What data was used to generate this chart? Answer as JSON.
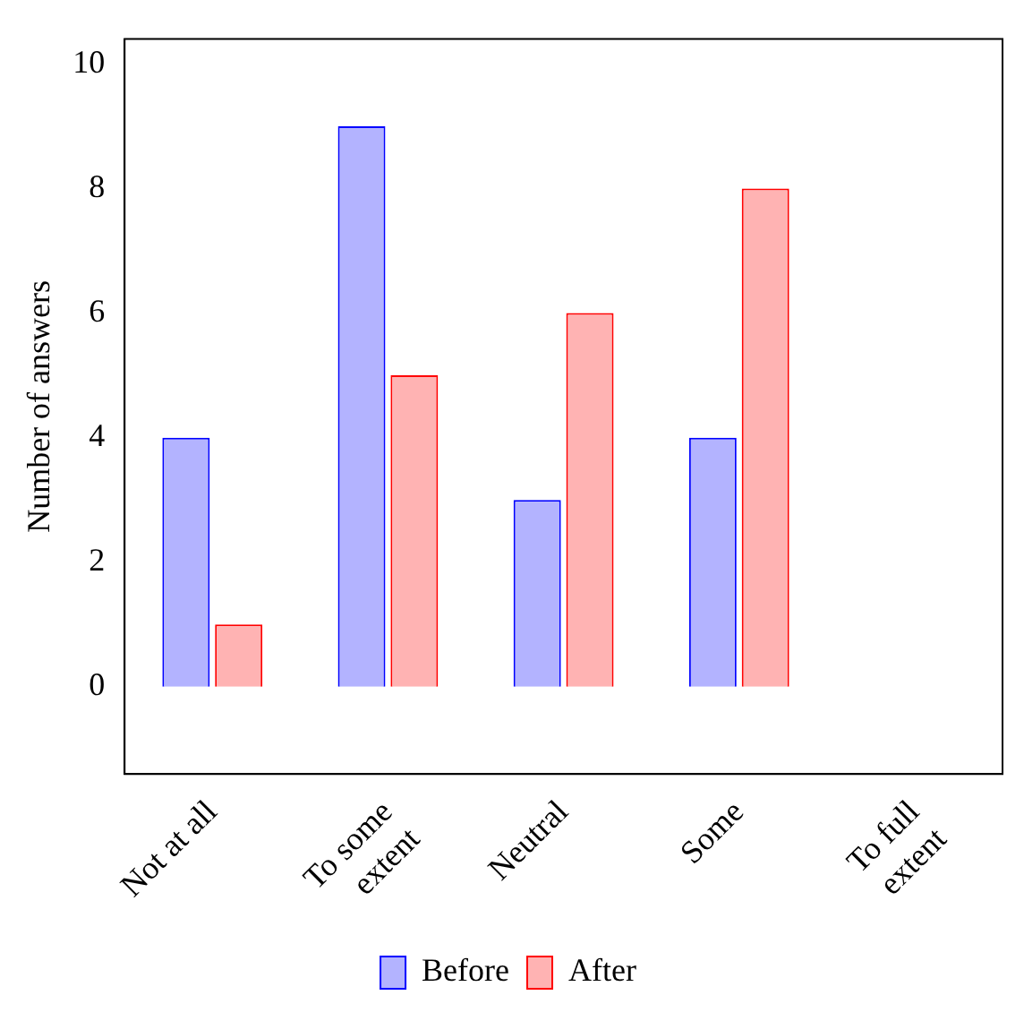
{
  "chart_data": {
    "type": "bar",
    "ylabel": "Number of answers",
    "categories": [
      "Not at all",
      "To some\nextent",
      "Neutral",
      "Some",
      "To full\nextent"
    ],
    "series": [
      {
        "name": "Before",
        "color": "#b3b3ff",
        "values": [
          4,
          9,
          3,
          4,
          0
        ]
      },
      {
        "name": "After",
        "color": "#ffb3b3",
        "values": [
          1,
          5,
          6,
          8,
          0
        ]
      }
    ],
    "ylim": [
      -1.4,
      10.4
    ],
    "yticks": [
      0,
      2,
      4,
      6,
      8,
      10
    ],
    "grid": false,
    "legend": "bottom"
  }
}
